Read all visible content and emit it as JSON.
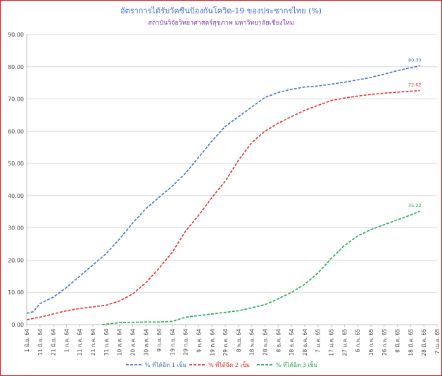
{
  "chart_data": {
    "type": "line",
    "title": "อัตราการได้รับวัคซีนป้องกันโควิด-19  ของประชากรไทย  (%)",
    "subtitle": "สถาบันวิจัยวิทยาศาสตร์สุขภาพ มหาวิทยาลัยเชียงใหม่",
    "xlabel": "",
    "ylabel": "",
    "ylim": [
      0,
      90
    ],
    "y_ticks": [
      "0.00",
      "10.00",
      "20.00",
      "30.00",
      "40.00",
      "50.00",
      "60.00",
      "70.00",
      "80.00",
      "90.00"
    ],
    "x_ticks": [
      "1 มิ.ย. 64",
      "11 มิ.ย. 64",
      "21 มิ.ย. 64",
      "1 ก.ค. 64",
      "11 ก.ค. 64",
      "21 ก.ค. 64",
      "31 ก.ค. 64",
      "10 ส.ค. 64",
      "20 ส.ค. 64",
      "30 ส.ค. 64",
      "9 ก.ย. 64",
      "19 ก.ย. 64",
      "29 ก.ย. 64",
      "9 ต.ค. 64",
      "19 ต.ค. 64",
      "29 ต.ค. 64",
      "8 พ.ย. 64",
      "18 พ.ย. 64",
      "28 พ.ย. 64",
      "8 ธ.ค. 64",
      "18 ธ.ค. 64",
      "28 ธ.ค. 64",
      "7 ม.ค. 65",
      "17 ม.ค. 65",
      "27 ม.ค. 65",
      "6 ก.พ. 65",
      "16 ก.พ. 65",
      "26 ก.พ. 65",
      "8 มี.ค. 65",
      "18 มี.ค. 65",
      "28 มี.ค. 65",
      "7 เม.ย. 65"
    ],
    "x_tick_offsets_days": [
      0,
      10,
      20,
      30,
      40,
      50,
      60,
      70,
      80,
      90,
      100,
      110,
      120,
      130,
      140,
      150,
      160,
      170,
      180,
      190,
      200,
      210,
      220,
      230,
      240,
      250,
      260,
      270,
      280,
      290,
      300,
      310
    ],
    "grid": true,
    "legend_position": "bottom",
    "series": [
      {
        "name": "% ที่ได้ฉีด 1 เข็ม",
        "color": "#4472c4",
        "end_label": "80.30",
        "points": [
          [
            0,
            3.5
          ],
          [
            5,
            4.0
          ],
          [
            10,
            6.5
          ],
          [
            20,
            8.5
          ],
          [
            30,
            11.5
          ],
          [
            40,
            15.0
          ],
          [
            50,
            18.5
          ],
          [
            60,
            22.0
          ],
          [
            70,
            26.5
          ],
          [
            80,
            31.5
          ],
          [
            90,
            36.0
          ],
          [
            100,
            39.5
          ],
          [
            110,
            43.0
          ],
          [
            120,
            47.0
          ],
          [
            130,
            52.0
          ],
          [
            140,
            57.0
          ],
          [
            150,
            61.5
          ],
          [
            160,
            64.5
          ],
          [
            170,
            67.5
          ],
          [
            180,
            70.5
          ],
          [
            190,
            72.0
          ],
          [
            200,
            73.0
          ],
          [
            210,
            73.7
          ],
          [
            220,
            74.0
          ],
          [
            230,
            74.6
          ],
          [
            240,
            75.2
          ],
          [
            250,
            75.9
          ],
          [
            260,
            76.7
          ],
          [
            270,
            77.7
          ],
          [
            280,
            78.8
          ],
          [
            290,
            79.7
          ],
          [
            297,
            80.3
          ]
        ]
      },
      {
        "name": "% ที่ได้ฉีด 2 เข็ม",
        "color": "#e03030",
        "end_label": "72.62",
        "points": [
          [
            0,
            1.5
          ],
          [
            10,
            2.3
          ],
          [
            20,
            3.3
          ],
          [
            30,
            4.3
          ],
          [
            40,
            5.0
          ],
          [
            50,
            5.5
          ],
          [
            60,
            6.0
          ],
          [
            70,
            7.3
          ],
          [
            80,
            9.5
          ],
          [
            90,
            13.0
          ],
          [
            100,
            17.5
          ],
          [
            110,
            22.5
          ],
          [
            120,
            29.0
          ],
          [
            130,
            34.0
          ],
          [
            140,
            39.5
          ],
          [
            150,
            44.5
          ],
          [
            160,
            51.0
          ],
          [
            170,
            56.5
          ],
          [
            180,
            60.0
          ],
          [
            190,
            62.5
          ],
          [
            200,
            64.5
          ],
          [
            210,
            66.5
          ],
          [
            220,
            68.0
          ],
          [
            230,
            69.5
          ],
          [
            240,
            70.3
          ],
          [
            250,
            70.9
          ],
          [
            260,
            71.4
          ],
          [
            270,
            71.8
          ],
          [
            280,
            72.1
          ],
          [
            290,
            72.4
          ],
          [
            297,
            72.62
          ]
        ]
      },
      {
        "name": "% ที่ได้ฉีด 3 เข็ม",
        "color": "#1aab4a",
        "end_label": "35.22",
        "points": [
          [
            57,
            0.0
          ],
          [
            70,
            0.6
          ],
          [
            80,
            0.7
          ],
          [
            90,
            0.8
          ],
          [
            100,
            0.8
          ],
          [
            110,
            1.0
          ],
          [
            120,
            2.3
          ],
          [
            130,
            2.8
          ],
          [
            140,
            3.3
          ],
          [
            150,
            3.8
          ],
          [
            160,
            4.3
          ],
          [
            170,
            5.2
          ],
          [
            180,
            6.2
          ],
          [
            190,
            8.0
          ],
          [
            200,
            10.0
          ],
          [
            210,
            12.5
          ],
          [
            220,
            16.0
          ],
          [
            230,
            20.5
          ],
          [
            240,
            24.5
          ],
          [
            250,
            27.5
          ],
          [
            260,
            29.5
          ],
          [
            270,
            31.0
          ],
          [
            280,
            32.5
          ],
          [
            290,
            34.0
          ],
          [
            297,
            35.22
          ]
        ]
      }
    ]
  }
}
